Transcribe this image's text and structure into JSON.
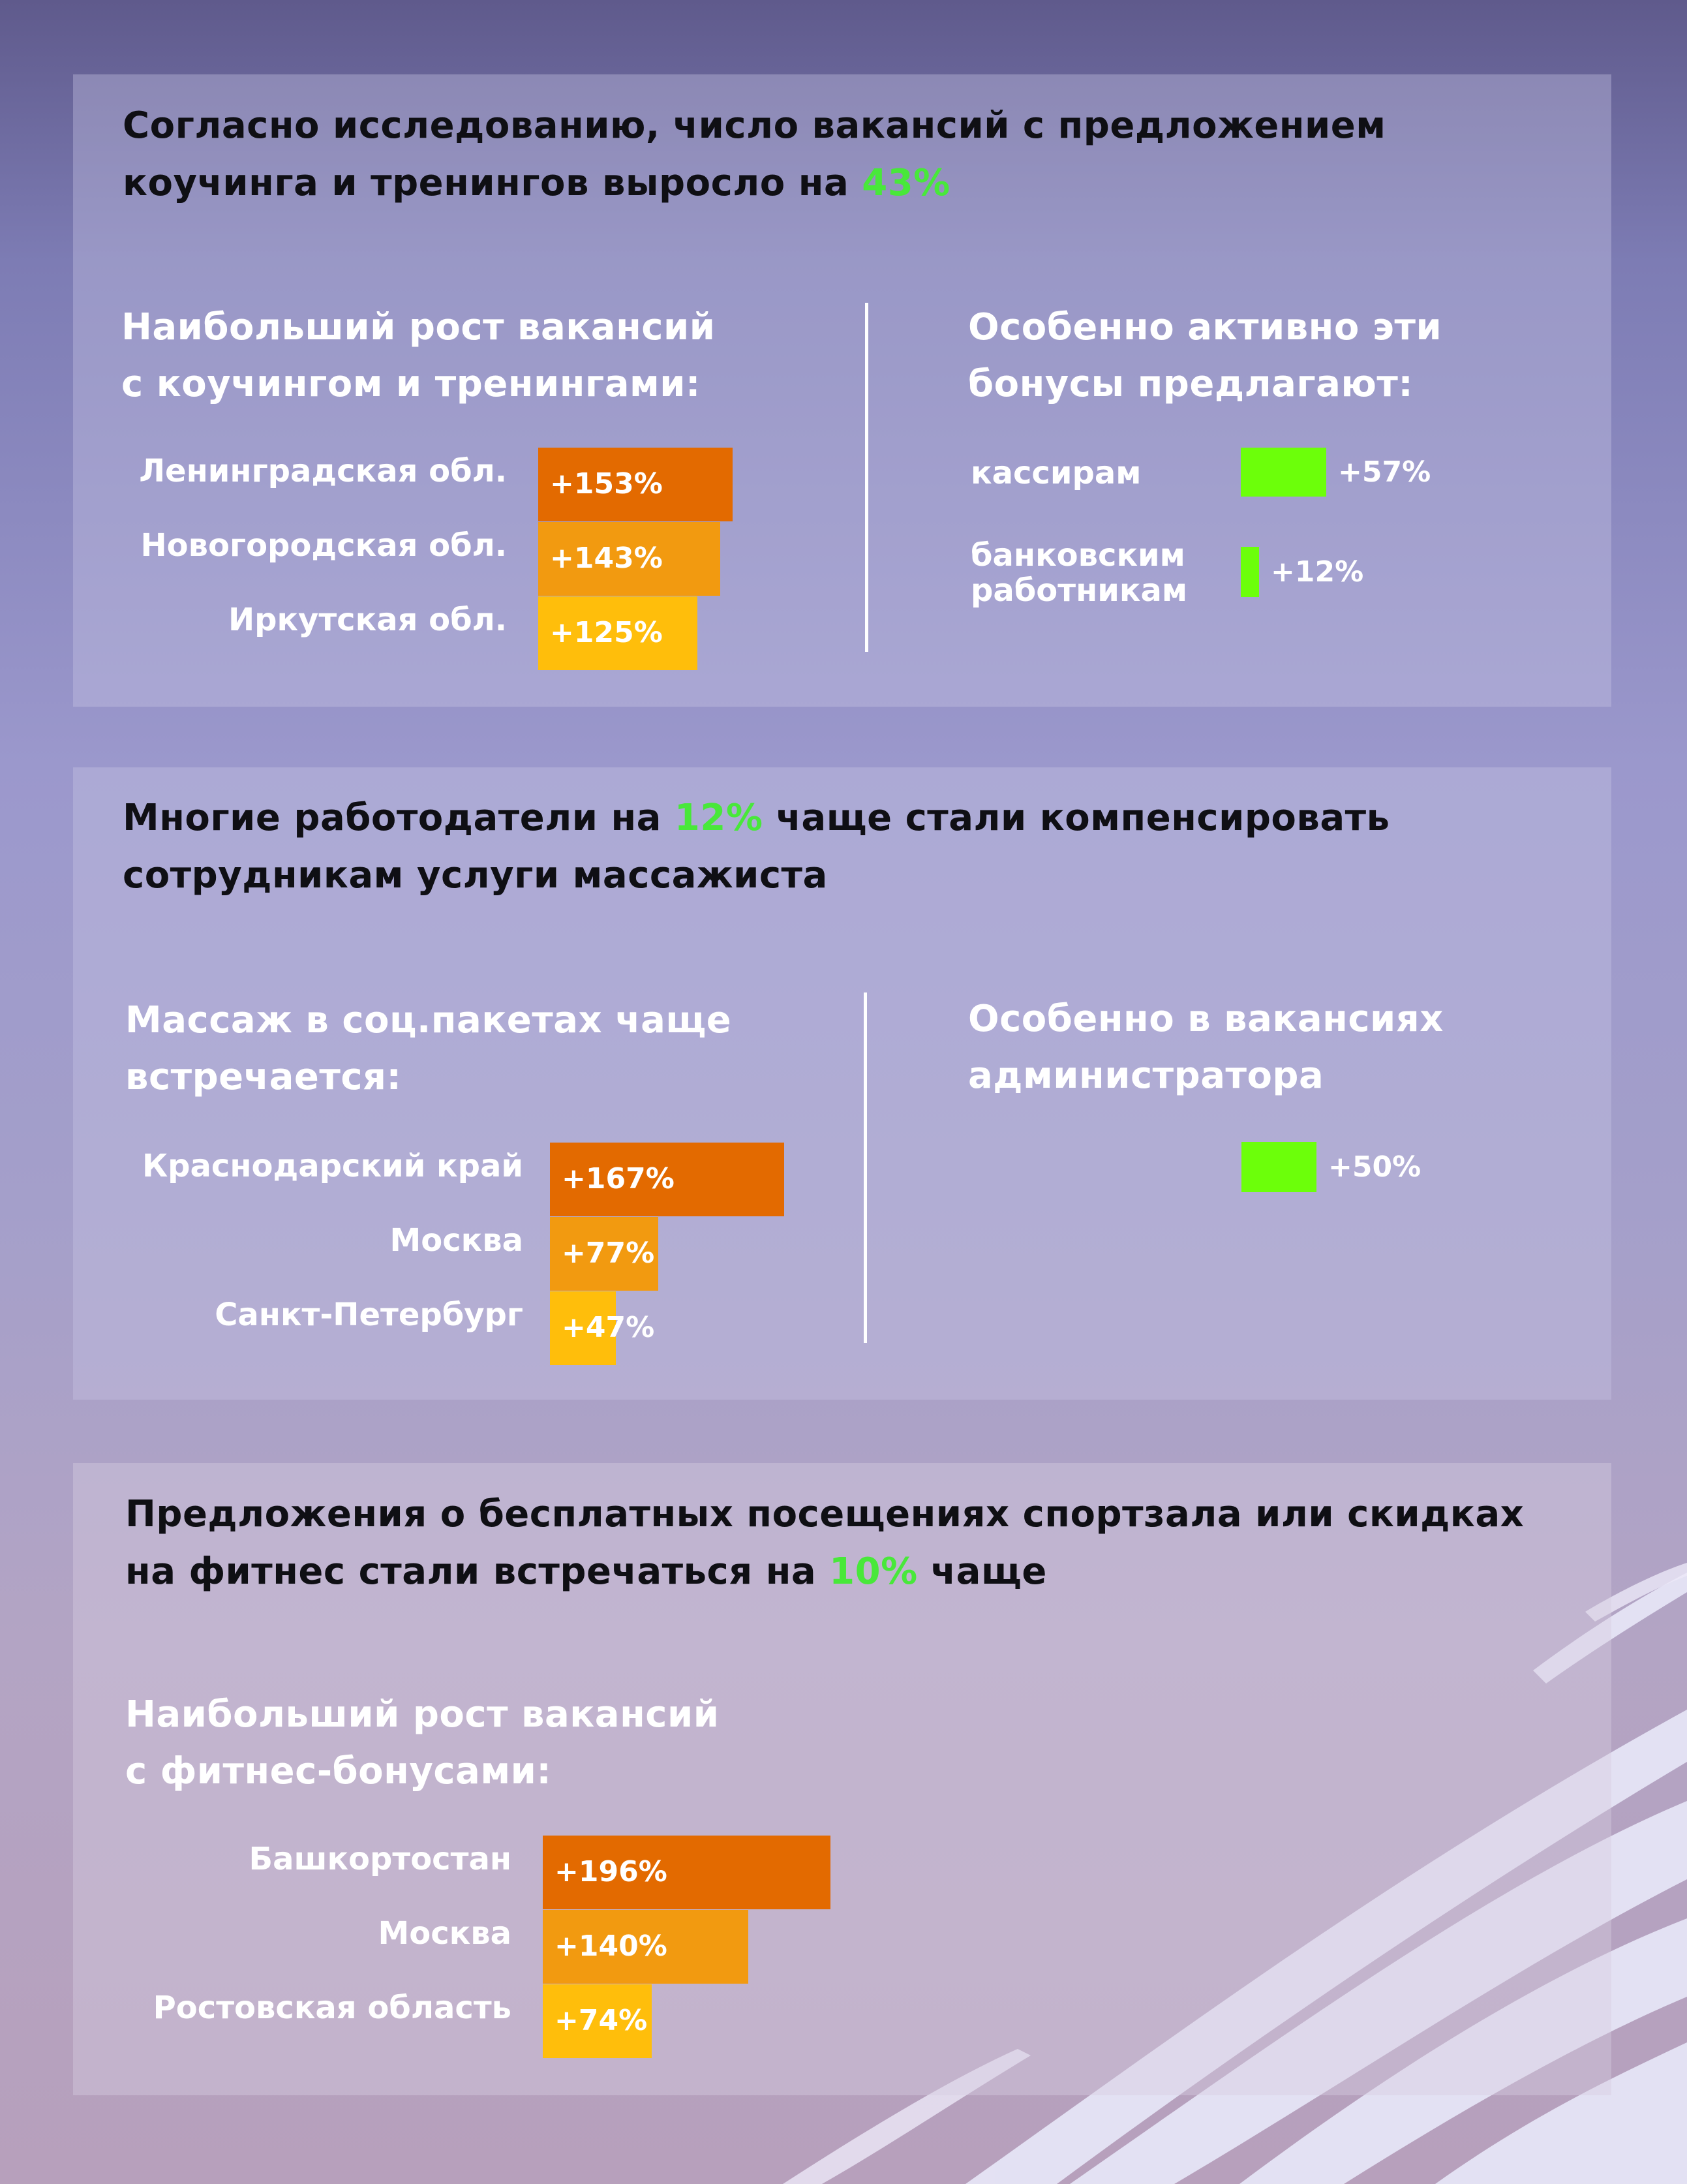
{
  "colors": {
    "bar_1": "#e36a00",
    "bar_2": "#f29a10",
    "bar_3": "#ffbe0b",
    "bonus": "#6cff0a",
    "accent": "#48e83a"
  },
  "section1": {
    "headline_pre": "Согласно исследованию, число вакансий с предложением коучинга и тренингов выросло на ",
    "headline_hl": "43%",
    "left_title": "Наибольший рост вакансий\nс коучингом и тренингами:",
    "right_title": "Особенно активно эти\nбонусы предлагают:"
  },
  "section2": {
    "headline_pre": "Многие работодатели на ",
    "headline_hl": "12%",
    "headline_post": " чаще стали компенсировать сотрудникам услуги массажиста",
    "left_title": "Массаж в соц.пакетах чаще\nвстречается:",
    "right_title": "Особенно в вакансиях\nадминистратора"
  },
  "section3": {
    "headline_pre": "Предложения о бесплатных посещениях спортзала или скидках на фитнес стали встречаться на ",
    "headline_hl": "10%",
    "headline_post": " чаще",
    "left_title": "Наибольший рост вакансий\nс фитнес-бонусами:"
  },
  "chart_data": [
    {
      "type": "bar",
      "orientation": "horizontal",
      "categories": [
        "Ленинградская обл.",
        "Новогородская обл.",
        "Иркутская обл."
      ],
      "values": [
        153,
        143,
        125
      ],
      "labels": [
        "+153%",
        "+143%",
        "+125%"
      ]
    },
    {
      "type": "bar",
      "orientation": "horizontal",
      "categories": [
        "кассирам",
        "банковским\nработникам"
      ],
      "values": [
        57,
        12
      ],
      "labels": [
        "+57%",
        "+12%"
      ]
    },
    {
      "type": "bar",
      "orientation": "horizontal",
      "categories": [
        "Краснодарский край",
        "Москва",
        "Санкт-Петербург"
      ],
      "values": [
        167,
        77,
        47
      ],
      "labels": [
        "+167%",
        "+77%",
        "+47%"
      ]
    },
    {
      "type": "bar",
      "orientation": "horizontal",
      "categories": [
        ""
      ],
      "values": [
        50
      ],
      "labels": [
        "+50%"
      ]
    },
    {
      "type": "bar",
      "orientation": "horizontal",
      "categories": [
        "Башкортостан",
        "Москва",
        "Ростовская область"
      ],
      "values": [
        196,
        140,
        74
      ],
      "labels": [
        "+196%",
        "+140%",
        "+74%"
      ]
    }
  ]
}
